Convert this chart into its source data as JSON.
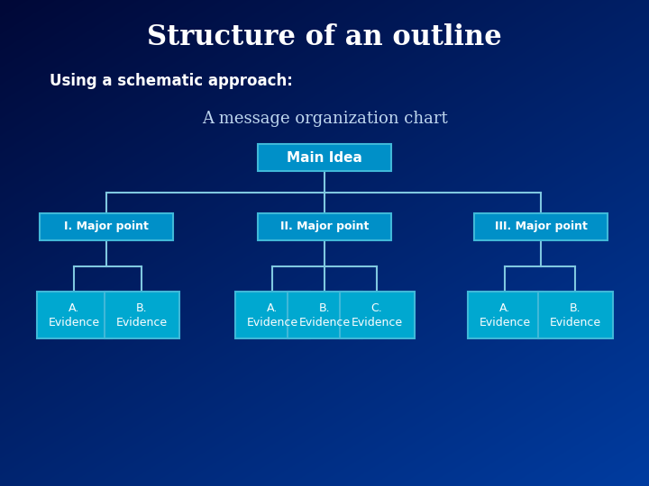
{
  "title": "Structure of an outline",
  "subtitle": "Using a schematic approach:",
  "chart_label": "A message organization chart",
  "bg_color_topleft": "#000833",
  "bg_color_bottomright": "#0050b8",
  "box_border_color": "#40b8d8",
  "box_fill_color": "#0090c8",
  "box_fill_evidence": "#00a8d0",
  "text_color": "#ffffff",
  "line_color": "#80c8e0",
  "main_idea_label": "Main Idea",
  "major_points": [
    "I. Major point",
    "II. Major point",
    "III. Major point"
  ],
  "evidence_groups": [
    [
      "A.\nEvidence",
      "B.\nEvidence"
    ],
    [
      "A.\nEvidence",
      "B.\nEvidence",
      "C.\nEvidence"
    ],
    [
      "A.\nEvidence",
      "B.\nEvidence"
    ]
  ],
  "figsize": [
    7.2,
    5.4
  ],
  "dpi": 100
}
